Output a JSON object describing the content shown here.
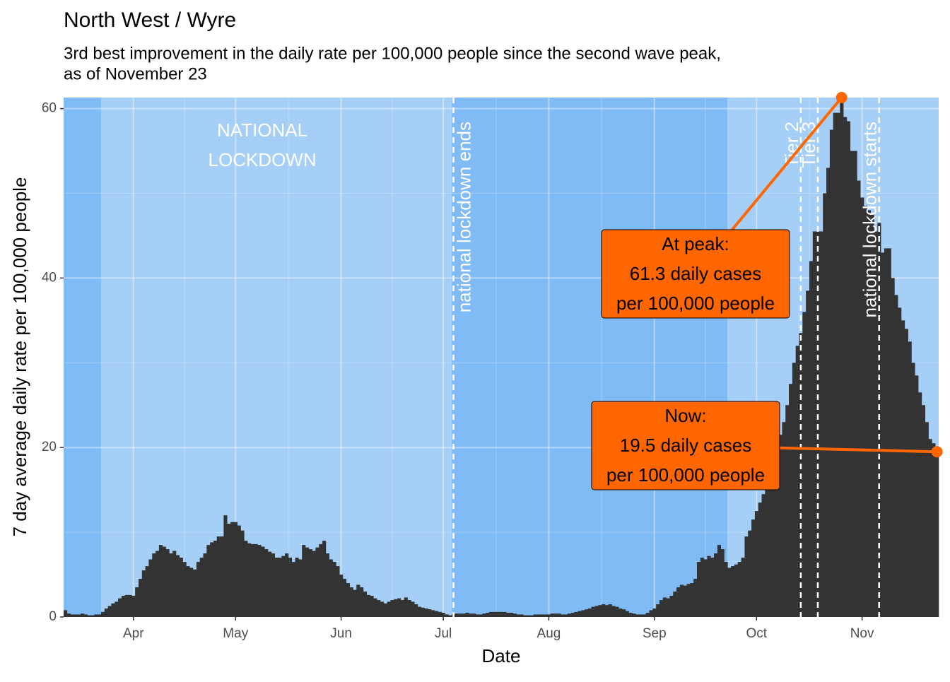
{
  "chart_data": {
    "type": "bar",
    "title": "North West / Wyre",
    "subtitle": [
      "3rd best improvement in the daily rate per 100,000 people since the second wave peak,",
      "as of November 23"
    ],
    "x_label": "Date",
    "y_label": "7 day average daily rate per 100,000 people",
    "color": "#333333",
    "grid": true,
    "ylim": [
      0,
      61.3
    ],
    "yticks": [
      0,
      20,
      40,
      60
    ],
    "categories": [
      null,
      null,
      null,
      null,
      null,
      null,
      null,
      null,
      null,
      null,
      null,
      null,
      null,
      null,
      null,
      null,
      null,
      null,
      null,
      null,
      "Apr",
      null,
      null,
      null,
      null,
      null,
      null,
      null,
      null,
      null,
      null,
      null,
      null,
      null,
      null,
      null,
      null,
      null,
      null,
      null,
      null,
      null,
      null,
      null,
      null,
      null,
      null,
      null,
      null,
      null,
      "May",
      null,
      null,
      null,
      null,
      null,
      null,
      null,
      null,
      null,
      null,
      null,
      null,
      null,
      null,
      null,
      null,
      null,
      null,
      null,
      null,
      null,
      null,
      null,
      null,
      null,
      null,
      null,
      null,
      null,
      null,
      "Jun",
      null,
      null,
      null,
      null,
      null,
      null,
      null,
      null,
      null,
      null,
      null,
      null,
      null,
      null,
      null,
      null,
      null,
      null,
      null,
      null,
      null,
      null,
      null,
      null,
      null,
      null,
      null,
      null,
      null,
      "Jul",
      null,
      null,
      null,
      null,
      null,
      null,
      null,
      null,
      null,
      null,
      null,
      null,
      null,
      null,
      null,
      null,
      null,
      null,
      null,
      null,
      null,
      null,
      null,
      null,
      null,
      null,
      null,
      null,
      null,
      null,
      "Aug",
      null,
      null,
      null,
      null,
      null,
      null,
      null,
      null,
      null,
      null,
      null,
      null,
      null,
      null,
      null,
      null,
      null,
      null,
      null,
      null,
      null,
      null,
      null,
      null,
      null,
      null,
      null,
      null,
      null,
      null,
      "Sep",
      null,
      null,
      null,
      null,
      null,
      null,
      null,
      null,
      null,
      null,
      null,
      null,
      null,
      null,
      null,
      null,
      null,
      null,
      null,
      null,
      null,
      null,
      null,
      null,
      null,
      null,
      null,
      null,
      null,
      "Oct",
      null,
      null,
      null,
      null,
      null,
      null,
      null,
      null,
      null,
      null,
      null,
      null,
      null,
      null,
      null,
      null,
      null,
      null,
      null,
      null,
      null,
      null,
      null,
      null,
      null,
      null,
      null,
      null,
      null,
      null,
      "Nov",
      null,
      null,
      null,
      null,
      null,
      null,
      null,
      null,
      null,
      null,
      null,
      null,
      null,
      null,
      null,
      null,
      null,
      null,
      null,
      null,
      null,
      null
    ],
    "values": [
      0.8,
      0.4,
      0.3,
      0.3,
      0.3,
      0.4,
      0.3,
      0.2,
      0.2,
      0.3,
      0.3,
      0.6,
      1.0,
      1.3,
      1.6,
      1.8,
      2.2,
      2.5,
      2.6,
      2.6,
      2.5,
      3.5,
      4.5,
      5.5,
      6.0,
      6.8,
      7.5,
      7.8,
      8.5,
      8.3,
      8.0,
      7.5,
      7.8,
      7.3,
      7.0,
      6.5,
      6.0,
      5.8,
      5.6,
      6.5,
      7.0,
      7.5,
      8.5,
      8.8,
      9.0,
      9.5,
      9.5,
      12.0,
      11.0,
      11.2,
      11.2,
      10.8,
      10.2,
      9.0,
      8.7,
      8.6,
      8.6,
      8.5,
      8.3,
      8.0,
      7.7,
      7.5,
      7.0,
      7.0,
      7.2,
      7.5,
      7.0,
      6.5,
      7.0,
      6.8,
      8.5,
      8.2,
      8.0,
      7.8,
      8.2,
      8.6,
      9.0,
      7.5,
      6.8,
      6.5,
      6.0,
      5.0,
      4.5,
      4.0,
      3.5,
      3.2,
      3.8,
      3.5,
      3.0,
      2.6,
      2.5,
      2.2,
      2.0,
      1.8,
      1.6,
      1.8,
      2.0,
      2.1,
      2.2,
      2.0,
      2.3,
      2.0,
      1.8,
      1.5,
      1.2,
      1.1,
      1.0,
      0.9,
      0.8,
      0.7,
      0.6,
      0.5,
      0.3,
      0.2,
      0.3,
      0.4,
      0.4,
      0.4,
      0.5,
      0.4,
      0.4,
      0.3,
      0.3,
      0.4,
      0.5,
      0.6,
      0.6,
      0.6,
      0.6,
      0.6,
      0.5,
      0.5,
      0.4,
      0.3,
      0.3,
      0.2,
      0.2,
      0.2,
      0.3,
      0.3,
      0.3,
      0.3,
      0.3,
      0.4,
      0.4,
      0.4,
      0.3,
      0.3,
      0.4,
      0.5,
      0.6,
      0.7,
      0.8,
      0.9,
      1.0,
      1.2,
      1.3,
      1.4,
      1.5,
      1.4,
      1.5,
      1.3,
      1.2,
      1.0,
      0.9,
      0.7,
      0.5,
      0.4,
      0.3,
      0.3,
      0.3,
      0.5,
      0.8,
      1.0,
      1.5,
      2.0,
      2.3,
      2.2,
      2.5,
      3.0,
      3.5,
      3.8,
      3.7,
      3.9,
      4.0,
      4.5,
      6.5,
      7.0,
      6.8,
      7.2,
      7.0,
      7.5,
      8.5,
      8.0,
      6.5,
      5.8,
      6.0,
      6.2,
      6.5,
      7.0,
      9.5,
      10.2,
      11.5,
      12.5,
      13.5,
      14.5,
      15.0,
      16.5,
      18.0,
      19.5,
      21.5,
      23.0,
      25.0,
      27.5,
      30.0,
      32.0,
      33.5,
      36.0,
      38.5,
      42.0,
      45.5,
      45.5,
      45.5,
      50.0,
      53.0,
      57.5,
      59.5,
      59.5,
      61.3,
      59.0,
      58.5,
      55.0,
      55.0,
      51.5,
      49.5,
      48.5,
      48.0,
      47.5,
      45.5,
      46.5,
      43.0,
      43.5,
      43.5,
      40.0,
      38.0,
      36.5,
      35.0,
      34.0,
      32.5,
      30.0,
      28.5,
      26.5,
      25.0,
      23.0,
      21.0,
      20.5,
      19.5
    ],
    "regions": [
      {
        "start": 0,
        "end": 10,
        "color": "#80bbf5"
      },
      {
        "start": 11,
        "end": 113,
        "color": "#a6cff7",
        "label": [
          "NATIONAL",
          "LOCKDOWN"
        ]
      },
      {
        "start": 114,
        "end": 194,
        "color": "#80bbf5"
      },
      {
        "start": 195,
        "end": 256,
        "color": "#a6cff7"
      }
    ],
    "vlines": [
      {
        "x": 114,
        "label": "national lockdown ends"
      },
      {
        "x": 216,
        "label": "Tier 2"
      },
      {
        "x": 221,
        "label": "Tier 3"
      },
      {
        "x": 239,
        "label": "national lockdown starts"
      }
    ],
    "annotations": [
      {
        "point": 228,
        "lines": [
          "At peak:",
          "61.3 daily cases",
          "per 100,000 people"
        ],
        "color": "#ff6600"
      },
      {
        "point": 256,
        "lines": [
          "Now:",
          "19.5 daily cases",
          "per 100,000 people"
        ],
        "color": "#ff6600"
      }
    ]
  }
}
